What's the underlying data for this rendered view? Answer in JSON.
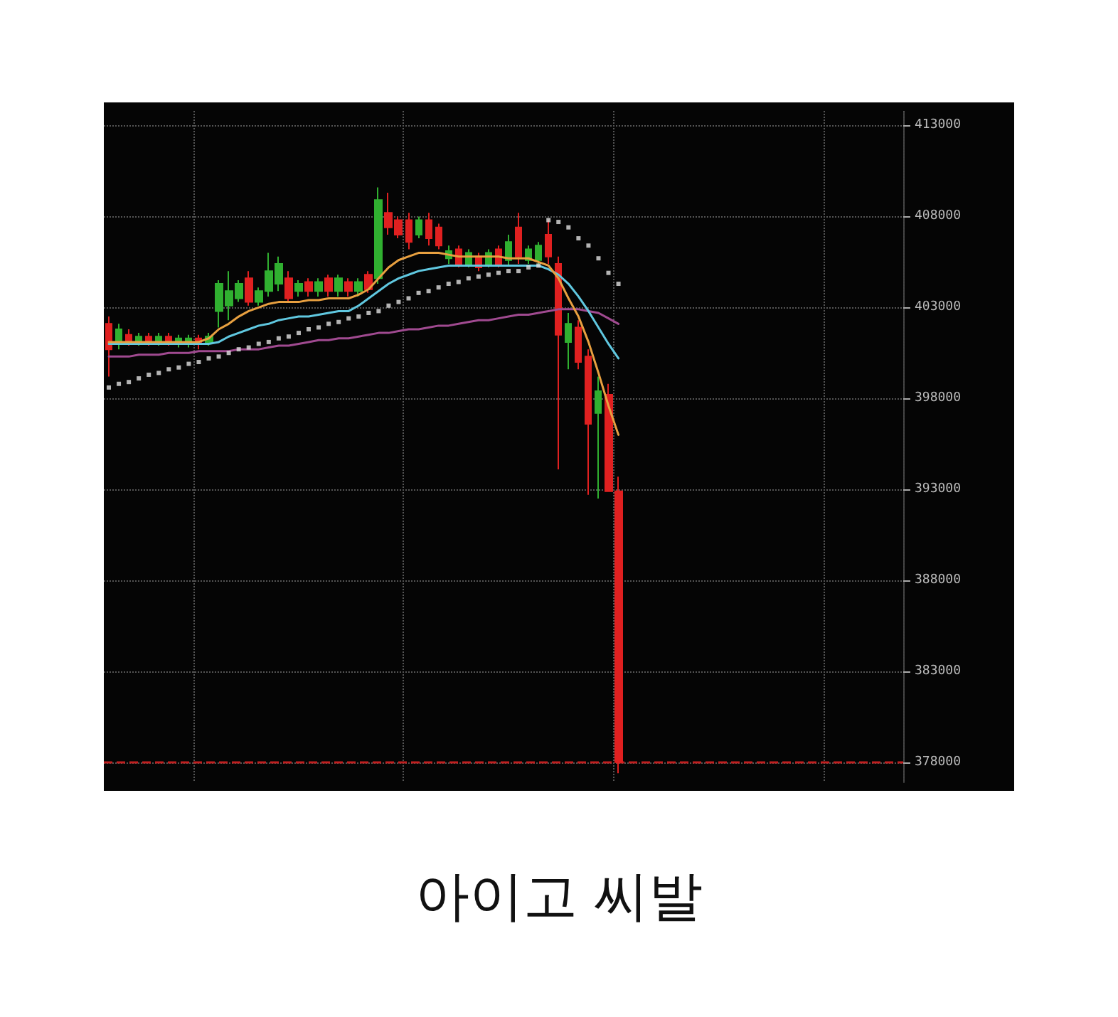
{
  "chart_data": {
    "type": "candlestick",
    "title": "아이고 씨발",
    "categories": [
      null,
      null,
      null,
      null,
      null,
      null,
      null,
      null,
      null,
      null,
      null,
      null,
      null,
      null,
      null,
      null,
      null,
      null,
      null,
      null,
      null,
      null,
      null,
      null,
      null,
      null,
      null,
      null,
      null,
      null,
      null,
      null,
      null,
      null,
      null,
      null,
      null,
      null,
      null,
      null,
      null,
      null,
      null,
      null,
      null,
      null,
      null,
      null,
      null,
      null,
      null,
      null,
      null,
      null,
      null,
      null,
      null,
      null,
      null,
      null,
      null,
      null,
      null,
      null,
      null,
      null,
      null,
      null,
      null,
      null,
      null,
      null,
      null,
      null,
      null,
      null,
      null,
      null,
      null,
      null
    ],
    "ohlc": [
      [
        402100,
        402500,
        399200,
        400700
      ],
      [
        401000,
        402100,
        400700,
        401800
      ],
      [
        401500,
        401800,
        400900,
        401100
      ],
      [
        401000,
        401600,
        400900,
        401400
      ],
      [
        401400,
        401600,
        400900,
        401100
      ],
      [
        401100,
        401600,
        400900,
        401400
      ],
      [
        401400,
        401600,
        400900,
        401100
      ],
      [
        401000,
        401500,
        400800,
        401300
      ],
      [
        401000,
        401500,
        400800,
        401300
      ],
      [
        401300,
        401500,
        400700,
        401000
      ],
      [
        401100,
        401600,
        400900,
        401400
      ],
      [
        402800,
        404500,
        401900,
        404300
      ],
      [
        403100,
        405000,
        402300,
        403900
      ],
      [
        403500,
        404500,
        403300,
        404300
      ],
      [
        404600,
        405000,
        403100,
        403300
      ],
      [
        403300,
        404100,
        403100,
        403900
      ],
      [
        403900,
        406000,
        403600,
        405000
      ],
      [
        404300,
        405800,
        403900,
        405400
      ],
      [
        404600,
        405000,
        403300,
        403500
      ],
      [
        403900,
        404500,
        403600,
        404300
      ],
      [
        404400,
        404600,
        403600,
        403900
      ],
      [
        403900,
        404600,
        403600,
        404400
      ],
      [
        404600,
        404800,
        403600,
        403900
      ],
      [
        403900,
        404800,
        403600,
        404600
      ],
      [
        404400,
        404600,
        403600,
        403900
      ],
      [
        403900,
        404600,
        403600,
        404400
      ],
      [
        404800,
        405000,
        403800,
        404000
      ],
      [
        404600,
        409600,
        404300,
        408900
      ],
      [
        408200,
        409300,
        407000,
        407400
      ],
      [
        407800,
        408000,
        406800,
        407000
      ],
      [
        407800,
        408200,
        406200,
        406600
      ],
      [
        407000,
        408000,
        406800,
        407800
      ],
      [
        407800,
        408200,
        406400,
        406800
      ],
      [
        407400,
        407600,
        406200,
        406400
      ],
      [
        405700,
        406400,
        405400,
        406100
      ],
      [
        406200,
        406400,
        405200,
        405400
      ],
      [
        405400,
        406200,
        405200,
        406000
      ],
      [
        405800,
        406000,
        405000,
        405200
      ],
      [
        405400,
        406200,
        405200,
        406000
      ],
      [
        406200,
        406400,
        405200,
        405400
      ],
      [
        405600,
        407000,
        405300,
        406600
      ],
      [
        407400,
        408200,
        405400,
        405800
      ],
      [
        405600,
        406400,
        405400,
        406200
      ],
      [
        405600,
        406600,
        405400,
        406400
      ],
      [
        407000,
        407800,
        405400,
        405800
      ],
      [
        405400,
        405800,
        394100,
        401500
      ],
      [
        401100,
        402700,
        399600,
        402100
      ],
      [
        401900,
        402300,
        399600,
        400000
      ],
      [
        400300,
        400700,
        392700,
        396600
      ],
      [
        397200,
        399200,
        392500,
        398400
      ],
      [
        398200,
        398800,
        392900,
        392900
      ],
      [
        392900,
        393700,
        377400,
        378000
      ],
      null,
      null,
      null,
      null,
      null,
      null,
      null,
      null,
      null,
      null,
      null,
      null,
      null,
      null,
      null,
      null,
      null,
      null,
      null,
      null,
      null,
      null,
      null,
      null,
      null,
      null,
      null,
      null
    ],
    "colors": [
      "#e02020",
      "#30b030",
      "#e02020",
      "#30b030",
      "#e02020",
      "#30b030",
      "#e02020",
      "#30b030",
      "#30b030",
      "#e02020",
      "#30b030",
      "#30b030",
      "#30b030",
      "#30b030",
      "#e02020",
      "#30b030",
      "#30b030",
      "#30b030",
      "#e02020",
      "#30b030",
      "#e02020",
      "#30b030",
      "#e02020",
      "#30b030",
      "#e02020",
      "#30b030",
      "#e02020",
      "#30b030",
      "#e02020",
      "#e02020",
      "#e02020",
      "#30b030",
      "#e02020",
      "#e02020",
      "#30b030",
      "#e02020",
      "#30b030",
      "#e02020",
      "#30b030",
      "#e02020",
      "#30b030",
      "#e02020",
      "#30b030",
      "#30b030",
      "#e02020",
      "#e02020",
      "#30b030",
      "#e02020",
      "#e02020",
      "#30b030",
      "#e02020",
      "#e02020",
      null,
      null,
      null,
      null,
      null,
      null,
      null,
      null,
      null,
      null,
      null,
      null,
      null,
      null,
      null,
      null,
      null,
      null,
      null,
      null,
      null,
      null,
      null,
      null,
      null,
      null,
      null,
      null
    ],
    "series": [
      {
        "type": "line",
        "marker": "none",
        "color": "#a04a90",
        "values": [
          400300,
          400300,
          400300,
          400400,
          400400,
          400400,
          400500,
          400500,
          400500,
          400600,
          400600,
          400600,
          400600,
          400700,
          400700,
          400700,
          400800,
          400900,
          400900,
          401000,
          401100,
          401200,
          401200,
          401300,
          401300,
          401400,
          401500,
          401600,
          401600,
          401700,
          401800,
          401800,
          401900,
          402000,
          402000,
          402100,
          402200,
          402300,
          402300,
          402400,
          402500,
          402600,
          402600,
          402700,
          402800,
          402900,
          402900,
          402900,
          402800,
          402700,
          402400,
          402100,
          null,
          null,
          null,
          null,
          null,
          null,
          null,
          null,
          null,
          null,
          null,
          null,
          null,
          null,
          null,
          null,
          null,
          null,
          null,
          null,
          null,
          null,
          null,
          null,
          null,
          null,
          null,
          null
        ]
      },
      {
        "type": "line",
        "marker": "none",
        "color": "#60c8e0",
        "values": [
          401000,
          401000,
          401000,
          401000,
          401000,
          401000,
          401000,
          401000,
          401000,
          401000,
          401000,
          401100,
          401400,
          401600,
          401800,
          402000,
          402100,
          402300,
          402400,
          402500,
          402500,
          402600,
          402700,
          402800,
          402800,
          403100,
          403500,
          403900,
          404300,
          404600,
          404800,
          405000,
          405100,
          405200,
          405300,
          405300,
          405300,
          405300,
          405300,
          405300,
          405300,
          405300,
          405300,
          405300,
          405100,
          404800,
          404300,
          403600,
          402800,
          401900,
          401000,
          400200,
          null,
          null,
          null,
          null,
          null,
          null,
          null,
          null,
          null,
          null,
          null,
          null,
          null,
          null,
          null,
          null,
          null,
          null,
          null,
          null,
          null,
          null,
          null,
          null,
          null,
          null,
          null,
          null
        ]
      },
      {
        "type": "line",
        "marker": "none",
        "color": "#e8a040",
        "values": [
          401100,
          401100,
          401100,
          401100,
          401100,
          401100,
          401100,
          401100,
          401100,
          401100,
          401300,
          401800,
          402100,
          402500,
          402800,
          403000,
          403200,
          403300,
          403300,
          403300,
          403400,
          403400,
          403500,
          403500,
          403500,
          403700,
          404000,
          404600,
          405200,
          405600,
          405800,
          406000,
          406000,
          406000,
          405900,
          405800,
          405800,
          405800,
          405800,
          405800,
          405700,
          405700,
          405700,
          405500,
          405300,
          404600,
          403500,
          402500,
          401100,
          399400,
          397600,
          396000,
          null,
          null,
          null,
          null,
          null,
          null,
          null,
          null,
          null,
          null,
          null,
          null,
          null,
          null,
          null,
          null,
          null,
          null,
          null,
          null,
          null,
          null,
          null,
          null,
          null,
          null,
          null,
          null
        ]
      },
      {
        "type": "scatter",
        "marker": "square",
        "color": "#e0e0e0",
        "values": [
          398600,
          398800,
          398900,
          399100,
          399300,
          399400,
          399600,
          399700,
          399900,
          400000,
          400200,
          400300,
          400500,
          400700,
          400800,
          401000,
          401100,
          401300,
          401400,
          401600,
          401800,
          401900,
          402100,
          402200,
          402400,
          402500,
          402700,
          402800,
          403100,
          403300,
          403500,
          403800,
          403900,
          404100,
          404300,
          404400,
          404600,
          404700,
          404800,
          404900,
          405000,
          405000,
          405200,
          405300,
          407800,
          407700,
          407400,
          406800,
          406400,
          405700,
          404900,
          404300,
          null,
          null,
          null,
          null,
          null,
          null,
          null,
          null,
          null,
          null,
          null,
          null,
          null,
          null,
          null,
          null,
          null,
          null,
          null,
          null,
          null,
          null,
          null,
          null,
          null,
          null,
          null,
          null
        ]
      }
    ],
    "ref_lines": [
      {
        "axis": "y",
        "value": 378000,
        "color": "#c02020",
        "line_style": "dashed"
      }
    ],
    "ylim": [
      376900,
      413800
    ],
    "yticks": [
      378000,
      383000,
      388000,
      393000,
      398000,
      403000,
      408000,
      413000
    ],
    "grid": true
  }
}
